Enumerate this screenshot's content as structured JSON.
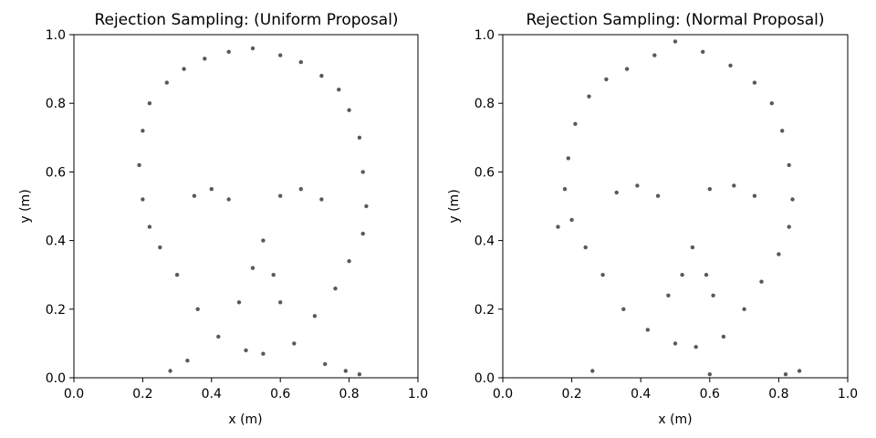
{
  "chart_data": [
    {
      "type": "scatter",
      "title": "Rejection Sampling: (Uniform Proposal)",
      "xlabel": "x (m)",
      "ylabel": "y (m)",
      "xlim": [
        0.0,
        1.0
      ],
      "ylim": [
        0.0,
        1.0
      ],
      "xticks": [
        "0.0",
        "0.2",
        "0.4",
        "0.6",
        "0.8",
        "1.0"
      ],
      "yticks": [
        "0.0",
        "0.2",
        "0.4",
        "0.6",
        "0.8",
        "1.0"
      ],
      "grid": false,
      "marker_color": "#000000",
      "marker_alpha": 0.65,
      "points": [
        [
          0.52,
          0.96
        ],
        [
          0.45,
          0.95
        ],
        [
          0.6,
          0.94
        ],
        [
          0.38,
          0.93
        ],
        [
          0.66,
          0.92
        ],
        [
          0.32,
          0.9
        ],
        [
          0.72,
          0.88
        ],
        [
          0.27,
          0.86
        ],
        [
          0.77,
          0.84
        ],
        [
          0.22,
          0.8
        ],
        [
          0.8,
          0.78
        ],
        [
          0.2,
          0.72
        ],
        [
          0.83,
          0.7
        ],
        [
          0.19,
          0.62
        ],
        [
          0.84,
          0.6
        ],
        [
          0.2,
          0.52
        ],
        [
          0.85,
          0.5
        ],
        [
          0.22,
          0.44
        ],
        [
          0.84,
          0.42
        ],
        [
          0.25,
          0.38
        ],
        [
          0.8,
          0.34
        ],
        [
          0.3,
          0.3
        ],
        [
          0.76,
          0.26
        ],
        [
          0.36,
          0.2
        ],
        [
          0.7,
          0.18
        ],
        [
          0.42,
          0.12
        ],
        [
          0.64,
          0.1
        ],
        [
          0.5,
          0.08
        ],
        [
          0.55,
          0.07
        ],
        [
          0.35,
          0.53
        ],
        [
          0.4,
          0.55
        ],
        [
          0.45,
          0.52
        ],
        [
          0.6,
          0.53
        ],
        [
          0.66,
          0.55
        ],
        [
          0.72,
          0.52
        ],
        [
          0.55,
          0.4
        ],
        [
          0.52,
          0.32
        ],
        [
          0.58,
          0.3
        ],
        [
          0.48,
          0.22
        ],
        [
          0.6,
          0.22
        ],
        [
          0.28,
          0.02
        ],
        [
          0.33,
          0.05
        ],
        [
          0.73,
          0.04
        ],
        [
          0.79,
          0.02
        ],
        [
          0.83,
          0.01
        ]
      ]
    },
    {
      "type": "scatter",
      "title": "Rejection Sampling: (Normal Proposal)",
      "xlabel": "x (m)",
      "ylabel": "y (m)",
      "xlim": [
        0.0,
        1.0
      ],
      "ylim": [
        0.0,
        1.0
      ],
      "xticks": [
        "0.0",
        "0.2",
        "0.4",
        "0.6",
        "0.8",
        "1.0"
      ],
      "yticks": [
        "0.0",
        "0.2",
        "0.4",
        "0.6",
        "0.8",
        "1.0"
      ],
      "grid": false,
      "marker_color": "#000000",
      "marker_alpha": 0.65,
      "points": [
        [
          0.5,
          0.98
        ],
        [
          0.44,
          0.94
        ],
        [
          0.58,
          0.95
        ],
        [
          0.36,
          0.9
        ],
        [
          0.66,
          0.91
        ],
        [
          0.3,
          0.87
        ],
        [
          0.73,
          0.86
        ],
        [
          0.25,
          0.82
        ],
        [
          0.78,
          0.8
        ],
        [
          0.21,
          0.74
        ],
        [
          0.81,
          0.72
        ],
        [
          0.19,
          0.64
        ],
        [
          0.83,
          0.62
        ],
        [
          0.18,
          0.55
        ],
        [
          0.84,
          0.52
        ],
        [
          0.2,
          0.46
        ],
        [
          0.83,
          0.44
        ],
        [
          0.24,
          0.38
        ],
        [
          0.8,
          0.36
        ],
        [
          0.29,
          0.3
        ],
        [
          0.75,
          0.28
        ],
        [
          0.35,
          0.2
        ],
        [
          0.7,
          0.2
        ],
        [
          0.42,
          0.14
        ],
        [
          0.64,
          0.12
        ],
        [
          0.5,
          0.1
        ],
        [
          0.56,
          0.09
        ],
        [
          0.33,
          0.54
        ],
        [
          0.39,
          0.56
        ],
        [
          0.45,
          0.53
        ],
        [
          0.6,
          0.55
        ],
        [
          0.67,
          0.56
        ],
        [
          0.73,
          0.53
        ],
        [
          0.55,
          0.38
        ],
        [
          0.52,
          0.3
        ],
        [
          0.59,
          0.3
        ],
        [
          0.48,
          0.24
        ],
        [
          0.61,
          0.24
        ],
        [
          0.26,
          0.02
        ],
        [
          0.6,
          0.01
        ],
        [
          0.82,
          0.01
        ],
        [
          0.86,
          0.02
        ],
        [
          0.16,
          0.44
        ]
      ]
    }
  ]
}
